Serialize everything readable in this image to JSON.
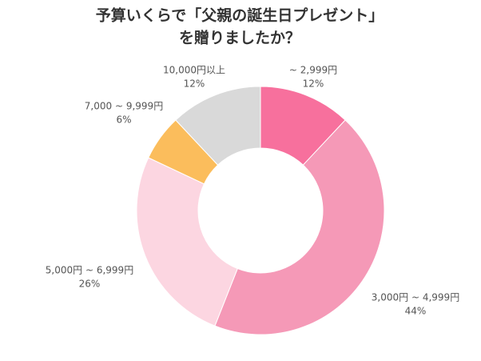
{
  "chart_data": {
    "type": "donut",
    "title": [
      "予算いくらで「父親の誕生日プレゼント」",
      "を贈りましたか？"
    ],
    "categories": [
      "~ 2,999円",
      "3,000円 ~ 4,999円",
      "5,000円 ~ 6,999円",
      "7,000 ~ 9,999円",
      "10,000円以上"
    ],
    "values": [
      12,
      44,
      26,
      6,
      12
    ],
    "value_labels": [
      "12%",
      "44%",
      "26%",
      "6%",
      "12%"
    ],
    "colors": [
      "#f7709d",
      "#f599b7",
      "#fcd6e1",
      "#fbbd5c",
      "#d9d9d9"
    ]
  }
}
